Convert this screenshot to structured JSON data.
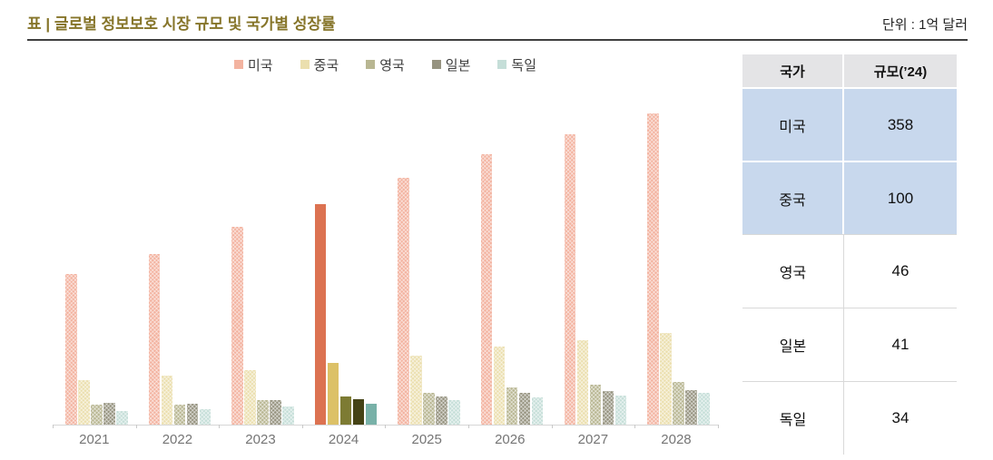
{
  "header": {
    "title": "표 | 글로벌 정보보호 시장 규모 및 국가별 성장률",
    "unit": "단위 : 1억 달러"
  },
  "chart_data": {
    "type": "bar",
    "title": "글로벌 정보보호 시장 규모 및 국가별 성장률",
    "unit_label": "단위 : 1억 달러",
    "x": [
      "2021",
      "2022",
      "2023",
      "2024",
      "2025",
      "2026",
      "2027",
      "2028"
    ],
    "highlight_year": "2024",
    "legend_position": "top-center",
    "grid": false,
    "ylim": [
      0,
      550
    ],
    "series": [
      {
        "key": "usa",
        "name": "미국",
        "values": [
          244,
          276,
          320,
          358,
          400,
          438,
          471,
          505
        ],
        "color_normal": "#f3b3a0",
        "color_highlight": "#dc7251"
      },
      {
        "key": "china",
        "name": "중국",
        "values": [
          72,
          79,
          88,
          100,
          112,
          126,
          137,
          149
        ],
        "color_normal": "#ebdfae",
        "color_highlight": "#dcc167"
      },
      {
        "key": "uk",
        "name": "영국",
        "values": [
          33,
          33,
          40,
          46,
          51,
          61,
          65,
          69
        ],
        "color_normal": "#b8b692",
        "color_highlight": "#7d7b33"
      },
      {
        "key": "japan",
        "name": "일본",
        "values": [
          35,
          34,
          39,
          41,
          45,
          51,
          54,
          56
        ],
        "color_normal": "#969380",
        "color_highlight": "#454316"
      },
      {
        "key": "germany",
        "name": "독일",
        "values": [
          22,
          25,
          29,
          34,
          39,
          44,
          47,
          52
        ],
        "color_normal": "#c5ded8",
        "color_highlight": "#78b1a8"
      }
    ]
  },
  "table": {
    "headers": [
      "국가",
      "규모(’24)"
    ],
    "rows": [
      {
        "country": "미국",
        "value": "358",
        "highlight": true
      },
      {
        "country": "중국",
        "value": "100",
        "highlight": true
      },
      {
        "country": "영국",
        "value": "46",
        "highlight": false
      },
      {
        "country": "일본",
        "value": "41",
        "highlight": false
      },
      {
        "country": "독일",
        "value": "34",
        "highlight": false
      }
    ],
    "highlight_row_color": "#c8d8ed",
    "header_bg_color": "#e4e4e6"
  },
  "colors": {
    "title_text": "#86752a",
    "header_rule": "#3f3f3f",
    "axis_line": "#d6d6d6",
    "x_label_text": "#757575"
  }
}
